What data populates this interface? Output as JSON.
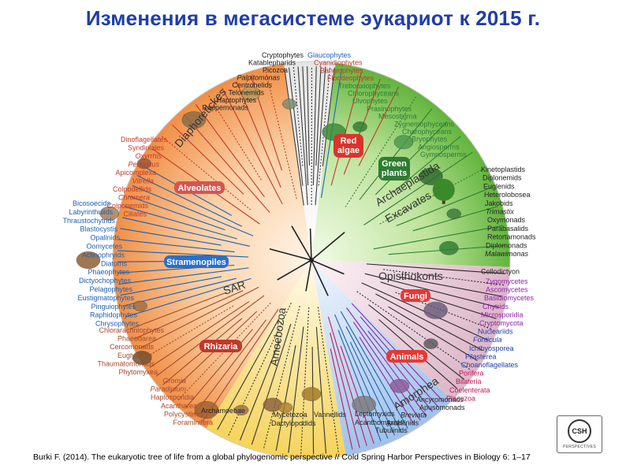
{
  "title": "Изменения в мегасистеме эукариот к 2015 г.",
  "citation": "Burki F. (2014). The eukaryotic tree of life from a global phylogenomic perspective // Cold Spring Harbor Perspectives in Biology 6: 1–17",
  "logo_text": "CSH",
  "logo_subtext": "PERSPECTIVES",
  "colors": {
    "misc": "#3a3a3a",
    "diaphoretickes": "#555555",
    "alveolates": "#c0392b",
    "stramenopiles": "#1f5fb0",
    "rhizaria": "#a5482e",
    "archaeplastida": "#2e7d32",
    "glaucophyte": "#1e63c6",
    "red": "#c0392b",
    "green": "#2e7d32",
    "excavates": "#2b2b2b",
    "opisthokont_fungi": "#8e24aa",
    "opisthokont_animal": "#c2185b",
    "amoebozoa": "#333333"
  },
  "group_labels": [
    {
      "id": "alveolates",
      "text": "Alveolates",
      "color": "#d9534f"
    },
    {
      "id": "stramenopiles",
      "text": "Stramenopiles",
      "color": "#2a6fc9"
    },
    {
      "id": "rhizaria",
      "text": "Rhizaria",
      "color": "#c0392b"
    },
    {
      "id": "red-algae",
      "text": "Red algae",
      "color": "#d9342b"
    },
    {
      "id": "green-plants",
      "text": "Green plants",
      "color": "#2e7d32"
    },
    {
      "id": "fungi",
      "text": "Fungi",
      "color": "#e53935"
    },
    {
      "id": "animals",
      "text": "Animals",
      "color": "#e53935"
    }
  ],
  "arc_labels": [
    {
      "id": "diaphoretickes",
      "text": "Diaphoretickes"
    },
    {
      "id": "archaeplastida",
      "text": "Archaeplastida"
    },
    {
      "id": "excavates",
      "text": "Excavates"
    },
    {
      "id": "sar",
      "text": "SAR"
    },
    {
      "id": "amoebozoa",
      "text": "Amoebozoa"
    },
    {
      "id": "opisthokonts",
      "text": "Opisthokonts"
    },
    {
      "id": "amorphea",
      "text": "Amorphea"
    }
  ],
  "taxa": {
    "top": [
      {
        "text": "Cryptophytes",
        "color": "#222222",
        "italic": false
      },
      {
        "text": "Katablepharids",
        "color": "#222222",
        "italic": false
      },
      {
        "text": "Picozoa",
        "color": "#222222",
        "italic": false
      },
      {
        "text": "Palpitomonas",
        "color": "#222222",
        "italic": true
      },
      {
        "text": "Centrohelids",
        "color": "#222222",
        "italic": false
      },
      {
        "text": "Telonemids",
        "color": "#222222",
        "italic": false
      },
      {
        "text": "Haptophytes",
        "color": "#222222",
        "italic": false
      },
      {
        "text": "Rappemonads",
        "color": "#222222",
        "italic": false
      }
    ],
    "left_upper": [
      {
        "text": "Dinoflagellates",
        "color": "#c0392b",
        "italic": false
      },
      {
        "text": "Syndiniales",
        "color": "#c0392b",
        "italic": false
      },
      {
        "text": "Oxyrrhis",
        "color": "#c0392b",
        "italic": true
      },
      {
        "text": "Perkinsus",
        "color": "#c0392b",
        "italic": true
      },
      {
        "text": "Apicomplexa",
        "color": "#c0392b",
        "italic": false
      },
      {
        "text": "Vitrella",
        "color": "#c0392b",
        "italic": true
      },
      {
        "text": "Colpodellids",
        "color": "#c0392b",
        "italic": false
      },
      {
        "text": "Chromera",
        "color": "#c0392b",
        "italic": true
      },
      {
        "text": "Colponemids",
        "color": "#c0392b",
        "italic": false
      },
      {
        "text": "Ciliates",
        "color": "#c0392b",
        "italic": false
      }
    ],
    "left_middle": [
      {
        "text": "Bicosoecids",
        "color": "#1f5fb0",
        "italic": false
      },
      {
        "text": "Labyrinthulids",
        "color": "#1f5fb0",
        "italic": false
      },
      {
        "text": "Thraustochytrids",
        "color": "#1f5fb0",
        "italic": false
      },
      {
        "text": "Blastocystis",
        "color": "#1f5fb0",
        "italic": false
      },
      {
        "text": "Opalinids",
        "color": "#1f5fb0",
        "italic": false
      },
      {
        "text": "Oomycetes",
        "color": "#1f5fb0",
        "italic": false
      },
      {
        "text": "Actinophryids",
        "color": "#1f5fb0",
        "italic": false
      },
      {
        "text": "Diatoms",
        "color": "#1f5fb0",
        "italic": false
      },
      {
        "text": "Phaeophytes",
        "color": "#1f5fb0",
        "italic": false
      },
      {
        "text": "Dictyochophytes",
        "color": "#1f5fb0",
        "italic": false
      },
      {
        "text": "Pelagophytes",
        "color": "#1f5fb0",
        "italic": false
      },
      {
        "text": "Eustigmatophytes",
        "color": "#1f5fb0",
        "italic": false
      },
      {
        "text": "Pinguiophytes",
        "color": "#1f5fb0",
        "italic": false
      },
      {
        "text": "Raphidophytes",
        "color": "#1f5fb0",
        "italic": false
      },
      {
        "text": "Chrysophytes",
        "color": "#1f5fb0",
        "italic": false
      }
    ],
    "left_lower": [
      {
        "text": "Chlorarachniophytes",
        "color": "#a5482e",
        "italic": false
      },
      {
        "text": "Phaeodarea",
        "color": "#a5482e",
        "italic": false
      },
      {
        "text": "Cercomonads",
        "color": "#a5482e",
        "italic": false
      },
      {
        "text": "Euglyphids",
        "color": "#a5482e",
        "italic": false
      },
      {
        "text": "Thaumatomonads",
        "color": "#a5482e",
        "italic": false
      },
      {
        "text": "Phytomyxea",
        "color": "#a5482e",
        "italic": false
      }
    ],
    "bottom_left": [
      {
        "text": "Gromia",
        "color": "#a5482e",
        "italic": true
      },
      {
        "text": "Paradinium",
        "color": "#a5482e",
        "italic": true
      },
      {
        "text": "Haplosporidia",
        "color": "#a5482e",
        "italic": false
      },
      {
        "text": "Acantharea",
        "color": "#a5482e",
        "italic": false
      },
      {
        "text": "Polycystines",
        "color": "#a5482e",
        "italic": false
      },
      {
        "text": "Foraminifera",
        "color": "#a5482e",
        "italic": false
      }
    ],
    "bottom": [
      {
        "text": "Archamoebae",
        "color": "#222222",
        "italic": false
      },
      {
        "text": "Mycetozoa",
        "color": "#222222",
        "italic": false
      },
      {
        "text": "Vannellids",
        "color": "#222222",
        "italic": false
      },
      {
        "text": "Dactylopodids",
        "color": "#222222",
        "italic": false
      },
      {
        "text": "Leptomyxids",
        "color": "#222222",
        "italic": false
      },
      {
        "text": "Acanthomyxids",
        "color": "#222222",
        "italic": false
      }
    ],
    "bottom_right": [
      {
        "text": "Ancyromonads",
        "color": "#222222",
        "italic": false
      },
      {
        "text": "Apusomonads",
        "color": "#222222",
        "italic": false
      },
      {
        "text": "Breviata",
        "color": "#222222",
        "italic": true
      },
      {
        "text": "Arcellinids",
        "color": "#222222",
        "italic": false
      },
      {
        "text": "Tubulinids",
        "color": "#222222",
        "italic": false
      }
    ],
    "top_right": [
      {
        "text": "Glaucophytes",
        "color": "#1e63c6",
        "italic": false
      },
      {
        "text": "Cyanidiophytes",
        "color": "#c0392b",
        "italic": false
      },
      {
        "text": "Bangiophytes",
        "color": "#c0392b",
        "italic": false
      },
      {
        "text": "Florideophytes",
        "color": "#c0392b",
        "italic": false
      },
      {
        "text": "Trebouxiophytes",
        "color": "#2e7d32",
        "italic": false
      },
      {
        "text": "Chlorophyceans",
        "color": "#2e7d32",
        "italic": false
      },
      {
        "text": "Ulvophytes",
        "color": "#2e7d32",
        "italic": false
      },
      {
        "text": "Prasinophytes",
        "color": "#2e7d32",
        "italic": false
      },
      {
        "text": "Mesostigma",
        "color": "#2e7d32",
        "italic": false
      },
      {
        "text": "Zygnemophyceans",
        "color": "#2e7d32",
        "italic": false
      },
      {
        "text": "Charophyceans",
        "color": "#2e7d32",
        "italic": false
      },
      {
        "text": "Bryophytes",
        "color": "#2e7d32",
        "italic": false
      },
      {
        "text": "Angiosperms",
        "color": "#2e7d32",
        "italic": false
      },
      {
        "text": "Gymnosperms",
        "color": "#2e7d32",
        "italic": false
      }
    ],
    "right_upper": [
      {
        "text": "Kinetoplastids",
        "color": "#222222",
        "italic": false
      },
      {
        "text": "Diplonemids",
        "color": "#222222",
        "italic": false
      },
      {
        "text": "Euglenids",
        "color": "#222222",
        "italic": false
      },
      {
        "text": "Heterolobosea",
        "color": "#222222",
        "italic": false
      },
      {
        "text": "Jakobids",
        "color": "#222222",
        "italic": false
      },
      {
        "text": "Trimastix",
        "color": "#222222",
        "italic": true
      },
      {
        "text": "Oxymonads",
        "color": "#222222",
        "italic": false
      },
      {
        "text": "Parabasalids",
        "color": "#222222",
        "italic": false
      },
      {
        "text": "Retortamonads",
        "color": "#222222",
        "italic": false
      },
      {
        "text": "Diplomonads",
        "color": "#222222",
        "italic": false
      },
      {
        "text": "Malawimonas",
        "color": "#222222",
        "italic": true
      },
      {
        "text": "Collodictyon",
        "color": "#222222",
        "italic": false
      }
    ],
    "right_lower": [
      {
        "text": "Zygomycetes",
        "color": "#8e24aa",
        "italic": false
      },
      {
        "text": "Ascomycetes",
        "color": "#8e24aa",
        "italic": false
      },
      {
        "text": "Basidiomycetes",
        "color": "#8e24aa",
        "italic": false
      },
      {
        "text": "Chytrids",
        "color": "#8e24aa",
        "italic": false
      },
      {
        "text": "Microsporidia",
        "color": "#8e24aa",
        "italic": false
      },
      {
        "text": "Cryptomycota",
        "color": "#8e24aa",
        "italic": false
      },
      {
        "text": "Nucleariids",
        "color": "#1f3ea6",
        "italic": false
      },
      {
        "text": "Fonticula",
        "color": "#1f3ea6",
        "italic": true
      },
      {
        "text": "Ichthyosporea",
        "color": "#1f3ea6",
        "italic": false
      },
      {
        "text": "Filasterea",
        "color": "#1f3ea6",
        "italic": false
      },
      {
        "text": "Choanoflagellates",
        "color": "#1f3ea6",
        "italic": false
      },
      {
        "text": "Porifera",
        "color": "#c2185b",
        "italic": false
      },
      {
        "text": "Bilateria",
        "color": "#c2185b",
        "italic": false
      },
      {
        "text": "Coelenterata",
        "color": "#c2185b",
        "italic": false
      },
      {
        "text": "Placozoa",
        "color": "#c2185b",
        "italic": false
      }
    ]
  }
}
